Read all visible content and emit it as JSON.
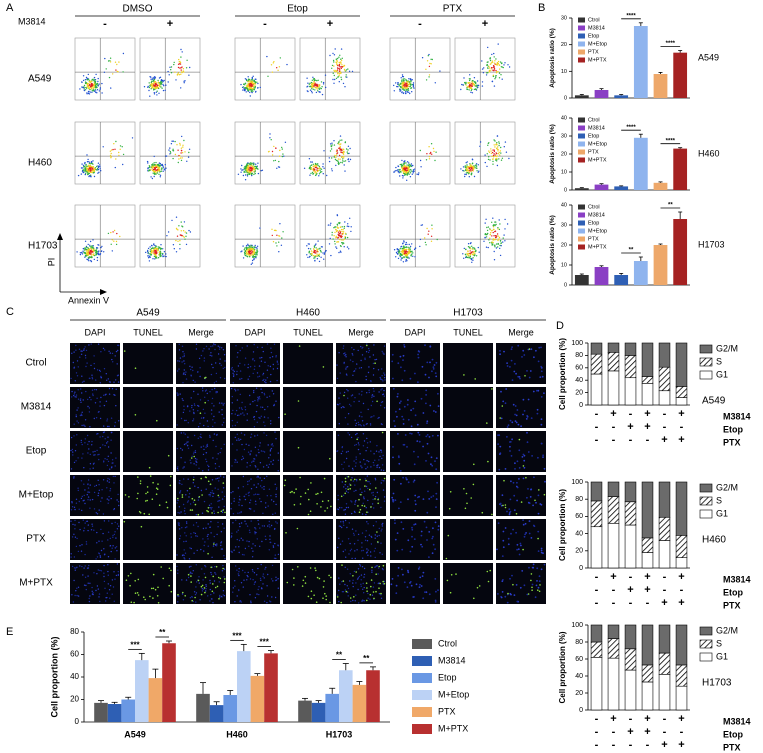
{
  "letters": [
    "A",
    "B",
    "C",
    "D",
    "E"
  ],
  "panel_a": {
    "factor": "M3814",
    "groups": [
      {
        "name": "DMSO",
        "signs": [
          "-",
          "+"
        ]
      },
      {
        "name": "Etop",
        "signs": [
          "-",
          "+"
        ]
      },
      {
        "name": "PTX",
        "signs": [
          "-",
          "+"
        ]
      }
    ],
    "rows": [
      "A549",
      "H460",
      "H1703"
    ],
    "y_axis": "PI",
    "x_axis": "Annexin V"
  },
  "panel_c": {
    "groups": [
      {
        "name": "A549",
        "channels": [
          "DAPI",
          "TUNEL",
          "Merge"
        ]
      },
      {
        "name": "H460",
        "channels": [
          "DAPI",
          "TUNEL",
          "Merge"
        ]
      },
      {
        "name": "H1703",
        "channels": [
          "DAPI",
          "TUNEL",
          "Merge"
        ]
      }
    ],
    "rows": [
      "Ctrol",
      "M3814",
      "Etop",
      "M+Etop",
      "PTX",
      "M+PTX"
    ]
  },
  "chart_data": [
    {
      "type": "bar",
      "ylabel": "Apoptosis ratio (%)",
      "label": "A549",
      "categories": [
        "Ctrol",
        "M3814",
        "Etop",
        "M+Etop",
        "PTX",
        "M+PTX"
      ],
      "colors": [
        "#333333",
        "#8a3fc4",
        "#2e5fb4",
        "#8fb4ee",
        "#eea86a",
        "#a52222"
      ],
      "values": [
        1,
        3,
        1,
        27,
        9,
        17
      ],
      "errors": [
        0.3,
        0.5,
        0.3,
        1.2,
        0.6,
        0.8
      ],
      "ylim": [
        0,
        30
      ],
      "yticks": [
        0,
        10,
        20,
        30
      ],
      "annotations": [
        {
          "text": "****",
          "categories": [
            "Etop",
            "M+Etop"
          ]
        },
        {
          "text": "****",
          "categories": [
            "PTX",
            "M+PTX"
          ]
        }
      ]
    },
    {
      "type": "bar",
      "ylabel": "Apoptosis ratio (%)",
      "label": "H460",
      "categories": [
        "Ctrol",
        "M3814",
        "Etop",
        "M+Etop",
        "PTX",
        "M+PTX"
      ],
      "colors": [
        "#333333",
        "#8a3fc4",
        "#2e5fb4",
        "#8fb4ee",
        "#eea86a",
        "#a52222"
      ],
      "values": [
        1,
        3,
        2,
        29,
        4,
        23
      ],
      "errors": [
        0.3,
        0.5,
        0.3,
        2,
        0.5,
        0.5
      ],
      "ylim": [
        0,
        40
      ],
      "yticks": [
        0,
        10,
        20,
        30,
        40
      ],
      "annotations": [
        {
          "text": "****",
          "categories": [
            "Etop",
            "M+Etop"
          ]
        },
        {
          "text": "****",
          "categories": [
            "PTX",
            "M+PTX"
          ]
        }
      ]
    },
    {
      "type": "bar",
      "ylabel": "Apoptosis ratio (%)",
      "label": "H1703",
      "categories": [
        "Ctrol",
        "M3814",
        "Etop",
        "M+Etop",
        "PTX",
        "M+PTX"
      ],
      "colors": [
        "#333333",
        "#8a3fc4",
        "#2e5fb4",
        "#8fb4ee",
        "#eea86a",
        "#a52222"
      ],
      "values": [
        5,
        9,
        5,
        12,
        20,
        33
      ],
      "errors": [
        0.5,
        0.6,
        0.8,
        2,
        0.5,
        3.5
      ],
      "ylim": [
        0,
        40
      ],
      "yticks": [
        0,
        10,
        20,
        30,
        40
      ],
      "annotations": [
        {
          "text": "**",
          "categories": [
            "Etop",
            "M+Etop"
          ]
        },
        {
          "text": "**",
          "categories": [
            "PTX",
            "M+PTX"
          ]
        }
      ]
    },
    {
      "type": "stacked_bar",
      "ylabel": "Cell proportion (%)",
      "label": "A549",
      "ylim": [
        0,
        100
      ],
      "yticks": [
        0,
        20,
        40,
        60,
        80,
        100
      ],
      "series": [
        {
          "name": "G1",
          "color": "#ffffff",
          "values": [
            50,
            55,
            44,
            35,
            23,
            12
          ]
        },
        {
          "name": "S",
          "color": "#ffffff",
          "pattern": "hatch",
          "values": [
            32,
            30,
            36,
            11,
            38,
            18
          ]
        },
        {
          "name": "G2/M",
          "color": "#6b6b6b",
          "values": [
            18,
            15,
            20,
            54,
            39,
            70
          ]
        }
      ],
      "conditions": [
        {
          "name": "M3814",
          "signs": [
            "-",
            "+",
            "-",
            "+",
            "-",
            "+"
          ]
        },
        {
          "name": "Etop",
          "signs": [
            "-",
            "-",
            "+",
            "+",
            "-",
            "-"
          ]
        },
        {
          "name": "PTX",
          "signs": [
            "-",
            "-",
            "-",
            "-",
            "+",
            "+"
          ]
        }
      ]
    },
    {
      "type": "stacked_bar",
      "ylabel": "Cell proportion (%)",
      "label": "H460",
      "ylim": [
        0,
        100
      ],
      "yticks": [
        0,
        20,
        40,
        60,
        80,
        100
      ],
      "series": [
        {
          "name": "G1",
          "color": "#ffffff",
          "values": [
            48,
            52,
            50,
            18,
            32,
            12
          ]
        },
        {
          "name": "S",
          "color": "#ffffff",
          "pattern": "hatch",
          "values": [
            30,
            31,
            27,
            17,
            27,
            26
          ]
        },
        {
          "name": "G2/M",
          "color": "#6b6b6b",
          "values": [
            22,
            17,
            23,
            65,
            41,
            62
          ]
        }
      ],
      "conditions": [
        {
          "name": "M3814",
          "signs": [
            "-",
            "+",
            "-",
            "+",
            "-",
            "+"
          ]
        },
        {
          "name": "Etop",
          "signs": [
            "-",
            "-",
            "+",
            "+",
            "-",
            "-"
          ]
        },
        {
          "name": "PTX",
          "signs": [
            "-",
            "-",
            "-",
            "-",
            "+",
            "+"
          ]
        }
      ]
    },
    {
      "type": "stacked_bar",
      "ylabel": "Cell proportion (%)",
      "label": "H1703",
      "ylim": [
        0,
        100
      ],
      "yticks": [
        0,
        20,
        40,
        60,
        80,
        100
      ],
      "series": [
        {
          "name": "G1",
          "color": "#ffffff",
          "values": [
            62,
            61,
            47,
            33,
            42,
            28
          ]
        },
        {
          "name": "S",
          "color": "#ffffff",
          "pattern": "hatch",
          "values": [
            18,
            23,
            25,
            20,
            25,
            25
          ]
        },
        {
          "name": "G2/M",
          "color": "#6b6b6b",
          "values": [
            20,
            16,
            28,
            47,
            33,
            47
          ]
        }
      ],
      "conditions": [
        {
          "name": "M3814",
          "signs": [
            "-",
            "+",
            "-",
            "+",
            "-",
            "+"
          ]
        },
        {
          "name": "Etop",
          "signs": [
            "-",
            "-",
            "+",
            "+",
            "-",
            "-"
          ]
        },
        {
          "name": "PTX",
          "signs": [
            "-",
            "-",
            "-",
            "-",
            "+",
            "+"
          ]
        }
      ]
    },
    {
      "type": "grouped_bar",
      "ylabel": "Cell proportion (%)",
      "categories": [
        "A549",
        "H460",
        "H1703"
      ],
      "ylim": [
        0,
        80
      ],
      "yticks": [
        0,
        20,
        40,
        60,
        80
      ],
      "series": [
        {
          "name": "Ctrol",
          "color": "#5a5a5a",
          "values": [
            17,
            25,
            19
          ],
          "errors": [
            2,
            10,
            2
          ]
        },
        {
          "name": "M3814",
          "color": "#2e5fb4",
          "values": [
            16,
            15,
            17
          ],
          "errors": [
            1.5,
            3,
            2
          ]
        },
        {
          "name": "Etop",
          "color": "#6a98e4",
          "values": [
            20,
            24,
            25
          ],
          "errors": [
            2,
            4,
            5
          ]
        },
        {
          "name": "M+Etop",
          "color": "#bcd2f5",
          "values": [
            55,
            63,
            46
          ],
          "errors": [
            6,
            6,
            6
          ]
        },
        {
          "name": "PTX",
          "color": "#f0a868",
          "values": [
            39,
            41,
            33
          ],
          "errors": [
            8,
            2,
            3
          ]
        },
        {
          "name": "M+PTX",
          "color": "#b83030",
          "values": [
            70,
            61,
            46
          ],
          "errors": [
            2,
            2.5,
            3
          ]
        }
      ],
      "annotations": [
        {
          "text": "***",
          "category": "A549",
          "series": [
            "Etop",
            "M+Etop"
          ]
        },
        {
          "text": "**",
          "category": "A549",
          "series": [
            "PTX",
            "M+PTX"
          ]
        },
        {
          "text": "***",
          "category": "H460",
          "series": [
            "Etop",
            "M+Etop"
          ]
        },
        {
          "text": "***",
          "category": "H460",
          "series": [
            "PTX",
            "M+PTX"
          ]
        },
        {
          "text": "**",
          "category": "H1703",
          "series": [
            "Etop",
            "M+Etop"
          ]
        },
        {
          "text": "**",
          "category": "H1703",
          "series": [
            "PTX",
            "M+PTX"
          ]
        }
      ]
    }
  ]
}
